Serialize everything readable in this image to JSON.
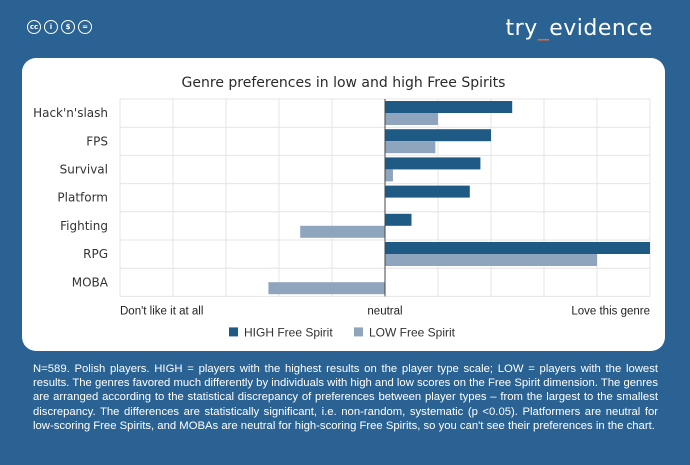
{
  "license_icons": [
    "cc",
    "by",
    "nc",
    "nd"
  ],
  "license_labels": {
    "cc": "cc",
    "by": "i",
    "nc": "$",
    "nd": "="
  },
  "brand": {
    "prefix": "try",
    "underscore": "_",
    "suffix": "evidence"
  },
  "colors": {
    "background": "#2a6294",
    "high": "#1f5a84",
    "low": "#8fa5be",
    "brand_accent": "#e8672e"
  },
  "caption": "N=589. Polish players. HIGH = players with the highest results on the player type scale; LOW = players with the lowest results. The genres favored much differently by individuals with high and low scores on the Free Spirit dimension. The genres are arranged according to the statistical discrepancy of preferences between player types – from the largest to the smallest discrepancy. The differences are statistically significant, i.e. non-random, systematic (p <0.05). Platformers are neutral for low-scoring Free Spirits, and MOBAs are neutral for high-scoring Free Spirits, so you can't see their preferences in the chart.",
  "chart_data": {
    "type": "bar",
    "orientation": "horizontal",
    "title": "Genre preferences in low and high Free Spirits",
    "categories": [
      "Hack'n'slash",
      "FPS",
      "Survival",
      "Platform",
      "Fighting",
      "RPG",
      "MOBA"
    ],
    "series": [
      {
        "name": "HIGH Free Spirit",
        "values": [
          2.4,
          2.0,
          1.8,
          1.6,
          0.5,
          5.0,
          null
        ]
      },
      {
        "name": "LOW Free Spirit",
        "values": [
          1.0,
          0.95,
          0.15,
          null,
          -1.6,
          4.0,
          -2.2
        ]
      }
    ],
    "xlim": [
      -5,
      5
    ],
    "x_tick_labels": [
      "Don't like it at all",
      "neutral",
      "Love this genre"
    ],
    "legend": "bottom",
    "grid": true
  }
}
